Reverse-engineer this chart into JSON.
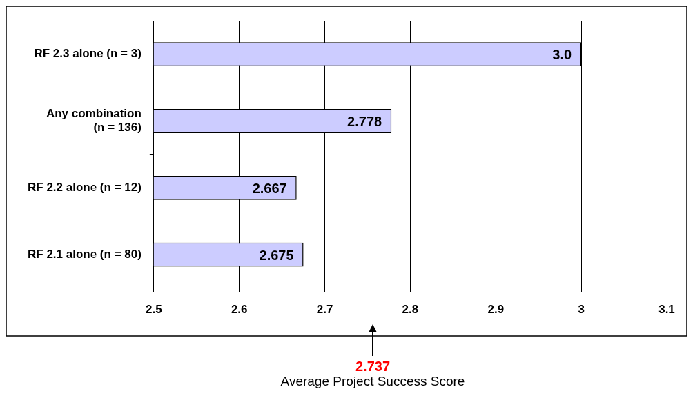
{
  "chart_data": {
    "type": "bar",
    "orientation": "horizontal",
    "categories": [
      "RF 2.3 alone (n = 3)",
      "Any combination\n(n = 136)",
      "RF 2.2 alone (n = 12)",
      "RF 2.1 alone (n = 80)"
    ],
    "values": [
      3.0,
      2.778,
      2.667,
      2.675
    ],
    "value_labels": [
      "3.0",
      "2.778",
      "2.667",
      "2.675"
    ],
    "color": "#ccccff",
    "xlim": [
      2.5,
      3.1
    ],
    "xticks": [
      2.5,
      2.6,
      2.7,
      2.8,
      2.9,
      3,
      3.1
    ],
    "grid": "x",
    "legend": false,
    "annotations": [
      "2.737",
      "Average Project Success Score"
    ]
  }
}
